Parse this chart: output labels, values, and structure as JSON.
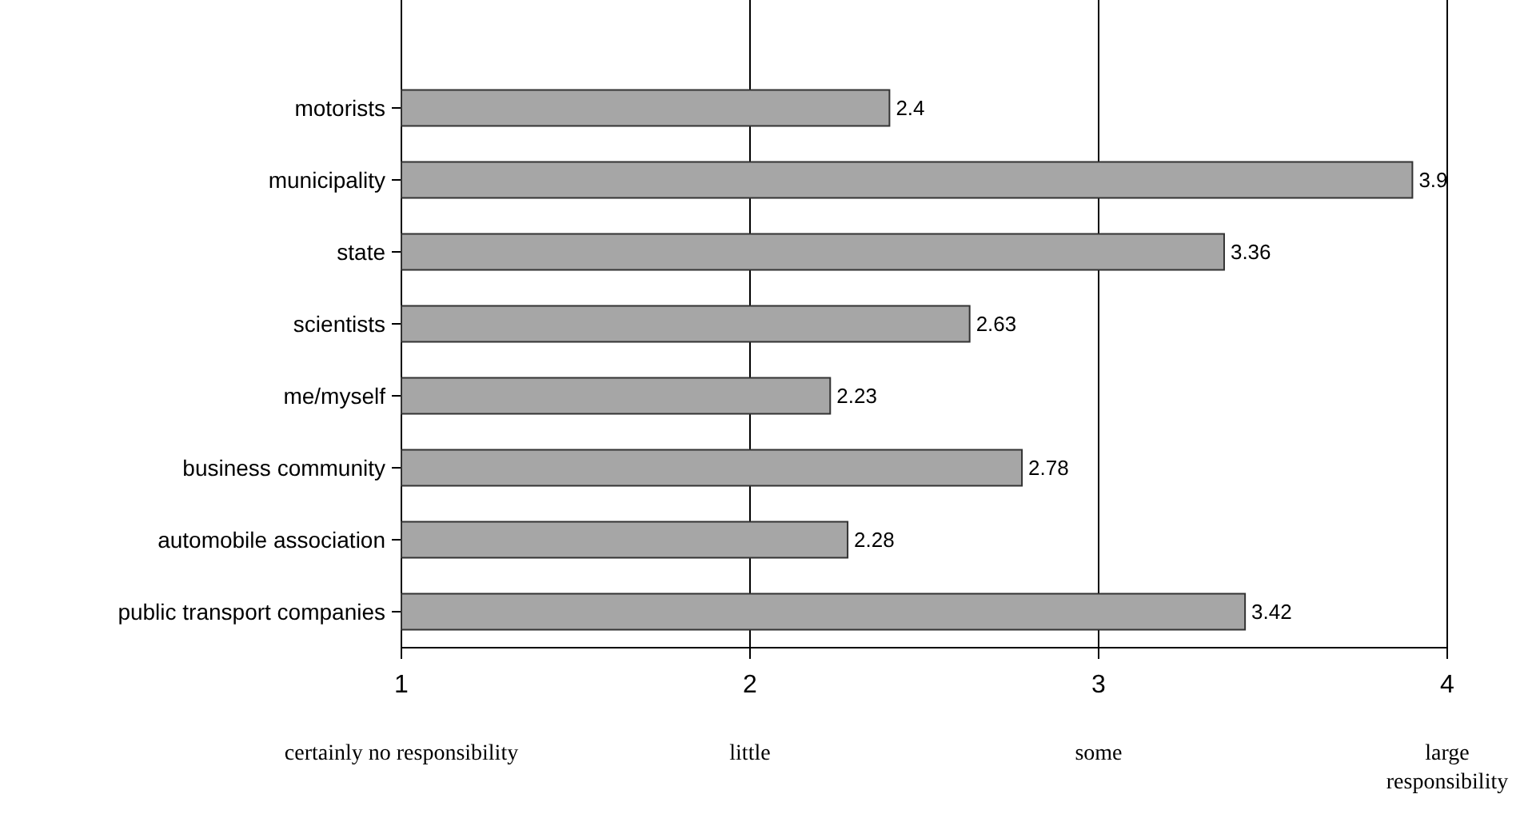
{
  "chart_data": {
    "type": "bar",
    "orientation": "horizontal",
    "categories": [
      "motorists",
      "municipality",
      "state",
      "scientists",
      "me/myself",
      "business community",
      "automobile association",
      "public transport companies"
    ],
    "values": [
      2.4,
      3.9,
      3.36,
      2.63,
      2.23,
      2.78,
      2.28,
      3.42
    ],
    "color": "#a6a6a6",
    "xlim": [
      1,
      4
    ],
    "xticks": [
      1,
      2,
      3,
      4
    ],
    "grid": "x",
    "data_labels": true,
    "annotations": [
      "certainly no responsibility",
      "little",
      "some",
      "large responsibility"
    ]
  }
}
